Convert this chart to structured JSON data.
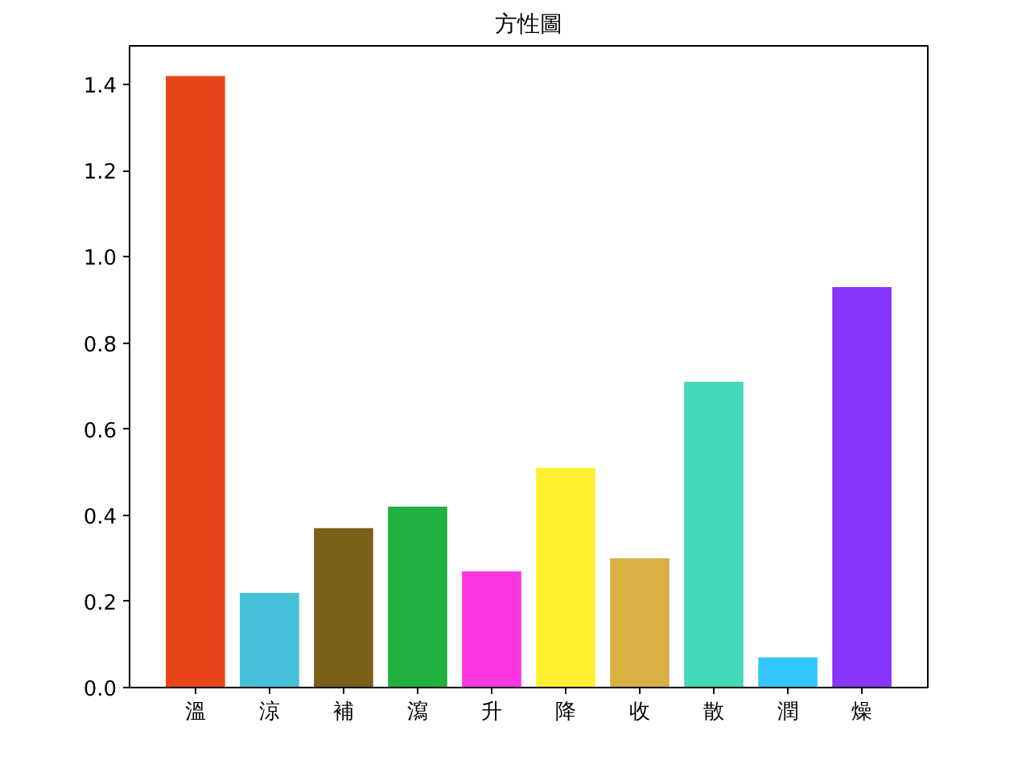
{
  "chart_data": {
    "type": "bar",
    "title": "方性圖",
    "categories": [
      "溫",
      "涼",
      "補",
      "瀉",
      "升",
      "降",
      "收",
      "散",
      "潤",
      "燥"
    ],
    "values": [
      1.42,
      0.22,
      0.37,
      0.42,
      0.27,
      0.51,
      0.3,
      0.71,
      0.07,
      0.93
    ],
    "colors": [
      "#e8441a",
      "#46bfd8",
      "#7a6018",
      "#21b140",
      "#fd35e1",
      "#fff02f",
      "#d8b043",
      "#44d9b8",
      "#32c8fd",
      "#8734fd"
    ],
    "ylim": [
      0,
      1.49
    ],
    "yticks": [
      {
        "value": 0,
        "label": "0.0"
      },
      0.2,
      0.4,
      0.6,
      0.8,
      {
        "value": 1,
        "label": "1.0"
      },
      1.2,
      1.4
    ]
  }
}
